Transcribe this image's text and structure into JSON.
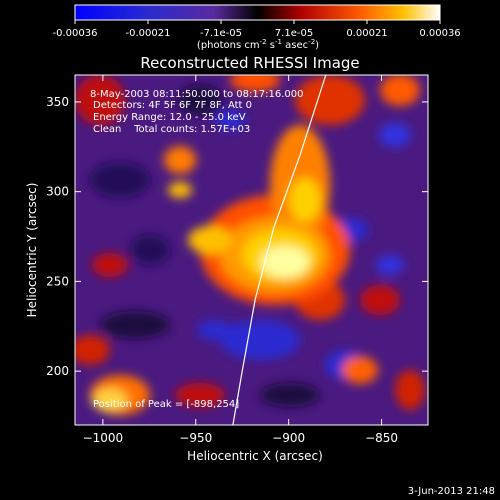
{
  "colorbar": {
    "ticks": [
      "-0.00036",
      "-0.00021",
      "-7.1e-05",
      "7.1e-05",
      "0.00021",
      "0.00036"
    ],
    "unit_label": "(photons cm",
    "unit_exp1": "-2",
    "unit_mid": " s",
    "unit_exp2": "-1",
    "unit_tail": " asec",
    "unit_exp3": "-2",
    "unit_close": ")",
    "min": -0.00036,
    "max": 0.00036
  },
  "chart_data": {
    "type": "heatmap",
    "title": "Reconstructed RHESSI Image",
    "xlabel": "Heliocentric X (arcsec)",
    "ylabel": "Heliocentric Y (arcsec)",
    "xlim": [
      -1015,
      -825
    ],
    "ylim": [
      170,
      365
    ],
    "x_ticks": [
      -1000,
      -950,
      -900,
      -850
    ],
    "y_ticks": [
      200,
      250,
      300,
      350
    ],
    "x_tick_labels": [
      "−1000",
      "−950",
      "−900",
      "−850"
    ],
    "y_tick_labels": [
      "200",
      "250",
      "300",
      "350"
    ],
    "grid": false,
    "annotations": {
      "time": "8-May-2003 08:11:50.000 to 08:17:16.000",
      "detectors": "Detectors: 4F 5F 6F 7F 8F, Att 0",
      "energy": "Energy Range: 12.0 - 25.0 keV",
      "counts": "Clean    Total counts: 1.57E+03",
      "peak": "Position of Peak = [-898,254]"
    },
    "peak": [
      -898,
      254
    ],
    "limb_points": [
      [
        -930,
        170
      ],
      [
        -925,
        200
      ],
      [
        -918,
        240
      ],
      [
        -908,
        280
      ],
      [
        -894,
        320
      ],
      [
        -880,
        365
      ]
    ]
  },
  "footer": {
    "date": "3-Jun-2013 21:48"
  }
}
